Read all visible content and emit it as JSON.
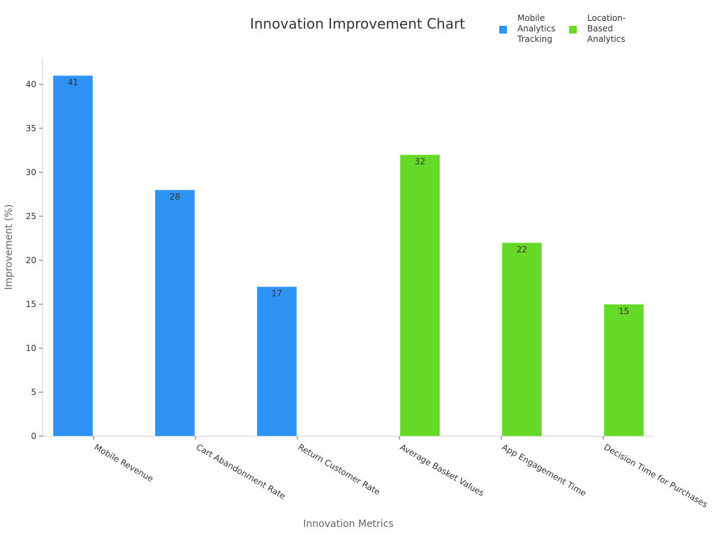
{
  "chart_data": {
    "type": "bar",
    "title": "Innovation Improvement Chart",
    "xlabel": "Innovation Metrics",
    "ylabel": "Improvement (%)",
    "ylim": [
      0,
      43
    ],
    "yticks": [
      0,
      5,
      10,
      15,
      20,
      25,
      30,
      35,
      40
    ],
    "grid": false,
    "legend_position": "top-right",
    "series": [
      {
        "name": "Mobile Analytics Tracking",
        "name_lines": [
          "Mobile",
          "Analytics",
          "Tracking"
        ],
        "color": "#2E93F5",
        "categories": [
          "Mobile Revenue",
          "Cart Abandonment Rate",
          "Return Customer Rate"
        ],
        "values": [
          41,
          28,
          17
        ]
      },
      {
        "name": "Location-Based Analytics",
        "name_lines": [
          "Location-Based",
          "Analytics"
        ],
        "color": "#66D926",
        "categories": [
          "Average Basket Values",
          "App Engagement Time",
          "Decision Time for Purchases"
        ],
        "values": [
          32,
          22,
          15
        ]
      }
    ]
  }
}
